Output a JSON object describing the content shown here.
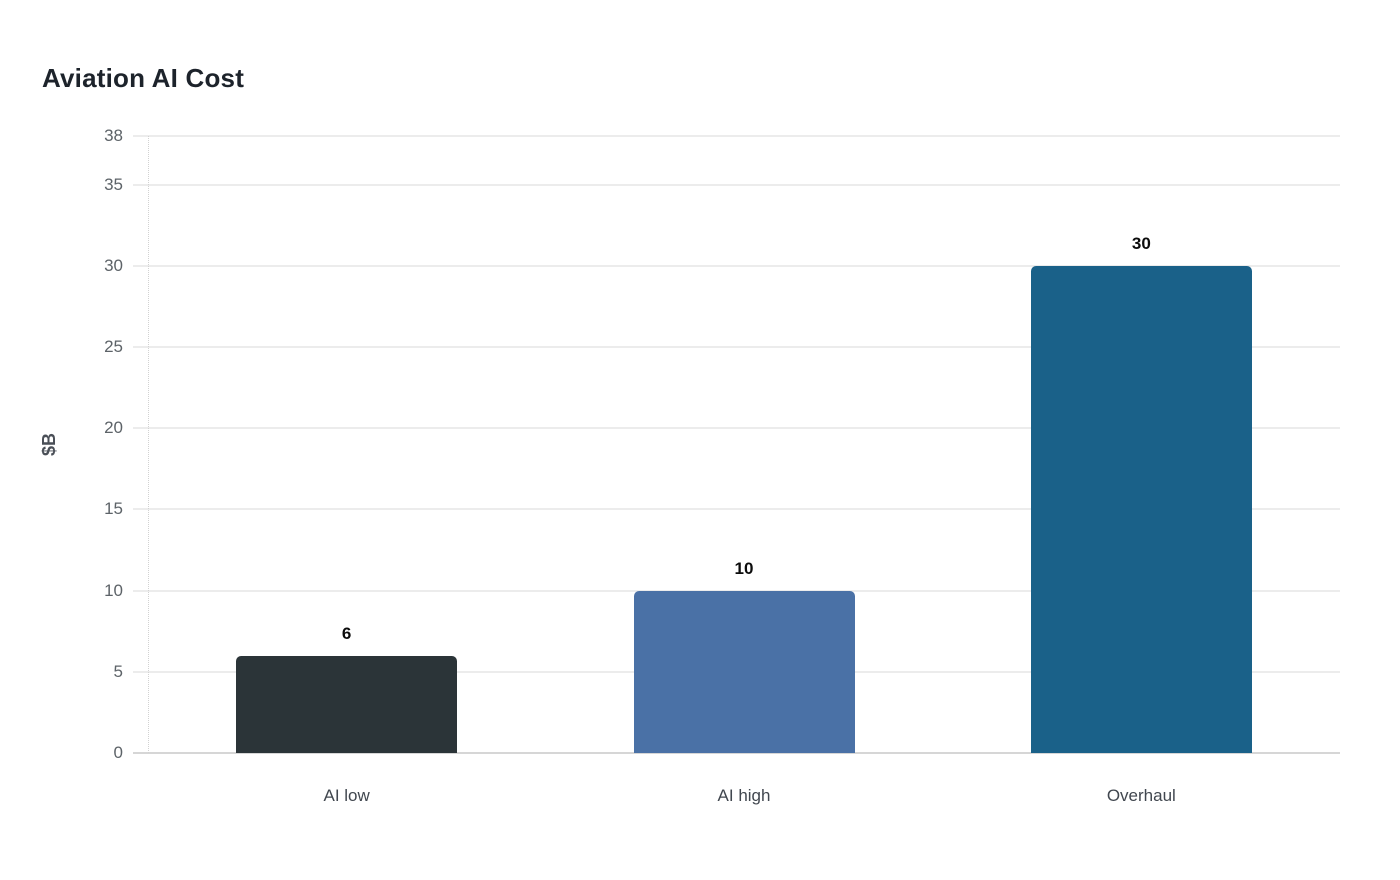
{
  "chart": {
    "title": "Aviation AI Cost",
    "y_axis_title": "$B"
  },
  "chart_data": {
    "type": "bar",
    "title": "Aviation AI Cost",
    "categories": [
      "AI low",
      "AI high",
      "Overhaul"
    ],
    "values": [
      6,
      10,
      30
    ],
    "data_labels": [
      "6",
      "10",
      "30"
    ],
    "bar_colors": [
      "#2b3438",
      "#4a71a6",
      "#1a6189"
    ],
    "xlabel": "",
    "ylabel": "$B",
    "ylim": [
      0,
      38
    ],
    "yticks": [
      0,
      5,
      10,
      15,
      20,
      25,
      30,
      35,
      38
    ],
    "grid": true,
    "legend": false,
    "background": "#ffffff"
  },
  "colors": {
    "title_text": "#1d232b",
    "tick_label_text": "#5d6368",
    "category_label_text": "#41474f",
    "data_label_text": "#0c0c0c",
    "grid_line": "#ececec",
    "zero_line": "#d6d6d6",
    "axis_dotted_line": "#d2d2d2"
  }
}
